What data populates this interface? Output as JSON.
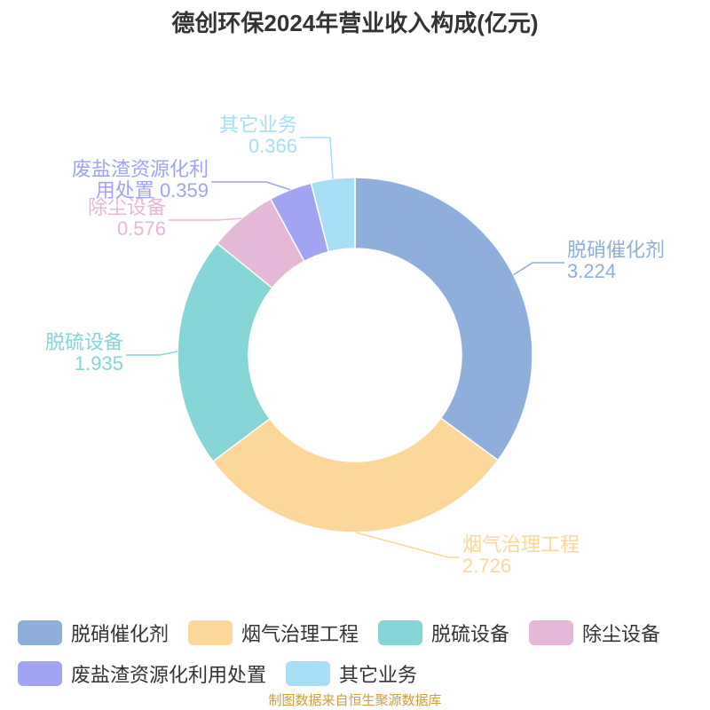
{
  "chart_data": {
    "type": "donut",
    "title": "德创环保2024年营业收入构成(亿元)",
    "categories": [
      "脱硝催化剂",
      "烟气治理工程",
      "脱硫设备",
      "除尘设备",
      "废盐渣资源化利用处置",
      "其它业务"
    ],
    "values": [
      3.224,
      2.726,
      1.935,
      0.576,
      0.359,
      0.366
    ],
    "colors": [
      "#8eaedb",
      "#fdd799",
      "#86d5d7",
      "#e6b8d8",
      "#a0a4f3",
      "#a7def5"
    ],
    "source": "制图数据来自恒生聚源数据库"
  }
}
